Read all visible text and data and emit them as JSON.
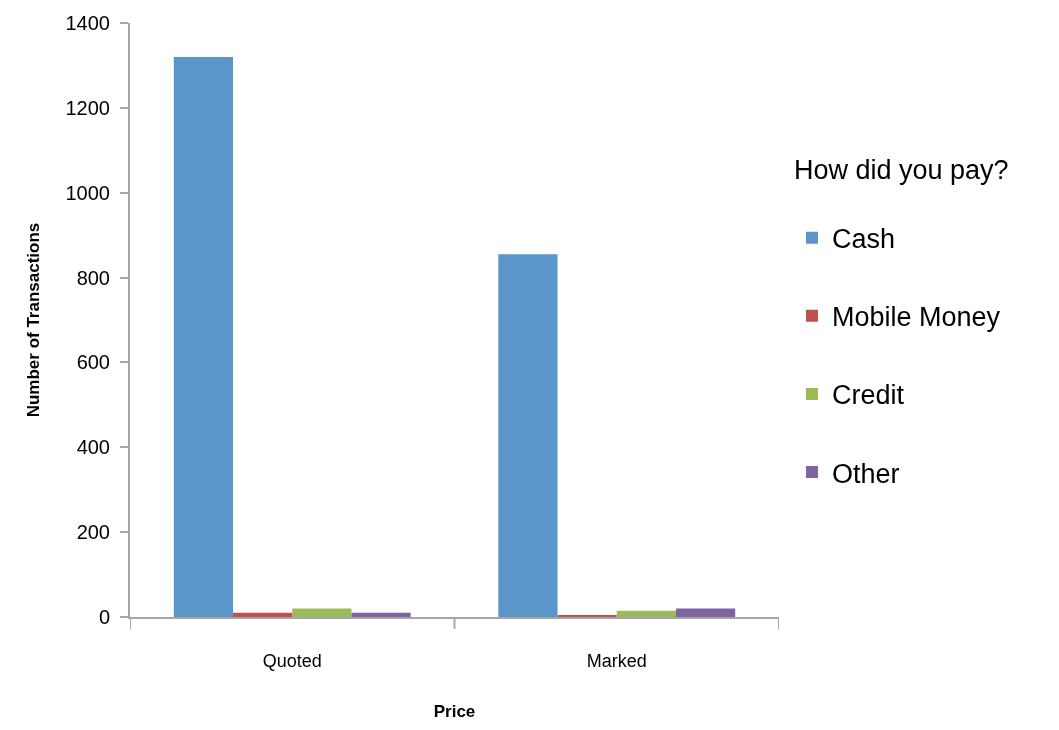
{
  "chart_data": {
    "type": "bar",
    "categories": [
      "Quoted",
      "Marked"
    ],
    "series": [
      {
        "name": "Cash",
        "color": "#5b96cb",
        "values": [
          1320,
          855
        ]
      },
      {
        "name": "Mobile Money",
        "color": "#c0504d",
        "values": [
          10,
          3
        ]
      },
      {
        "name": "Credit",
        "color": "#9bbb59",
        "values": [
          20,
          15
        ]
      },
      {
        "name": "Other",
        "color": "#8064a2",
        "values": [
          10,
          20
        ]
      }
    ],
    "xlabel": "Price",
    "ylabel": "Number of Transactions",
    "legend_title": "How did you pay?",
    "ylim": [
      0,
      1400
    ],
    "yticks": [
      0,
      200,
      400,
      600,
      800,
      1000,
      1200,
      1400
    ],
    "legend": "right"
  }
}
